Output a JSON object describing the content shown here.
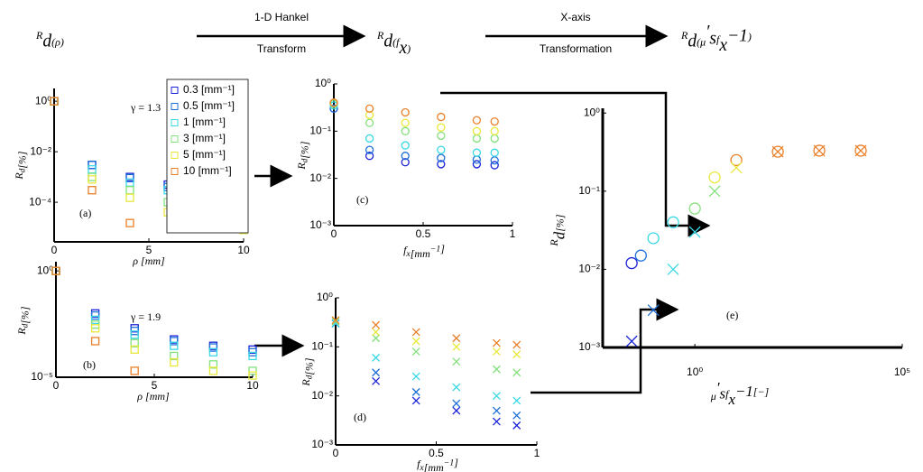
{
  "flow": {
    "stages": [
      [
        "R",
        {
          "sub": "d"
        },
        "(ρ)"
      ],
      [
        "R",
        {
          "sub": "d"
        },
        "(f",
        {
          "sub": "x"
        },
        ")"
      ],
      [
        "R",
        {
          "sub": "d"
        },
        "(μ",
        {
          "sup": "′"
        },
        {
          "sub": "s"
        },
        "f",
        {
          "sub": "x"
        },
        {
          "sup": "−1"
        },
        ")"
      ]
    ],
    "steps": [
      [
        "1-D Hankel",
        "Transform"
      ],
      [
        "X-axis",
        "Transformation"
      ]
    ]
  },
  "chart_data": [
    {
      "type": "scatter",
      "marker": "s",
      "xlabel": [
        "ρ [mm]"
      ],
      "ylabel": [
        "R",
        {
          "sub": "d"
        },
        "[%]"
      ],
      "annotations": [
        "γ = 1.3",
        "(a)"
      ],
      "legend": "upper right",
      "x": [
        0,
        2,
        4,
        6,
        8,
        10
      ],
      "xlim": [
        0,
        10
      ],
      "xticks": [
        0,
        5,
        10
      ],
      "ylog": true,
      "ylim": [
        2.7e-06,
        3.2
      ],
      "yticks": [
        {
          "value": 1,
          "label": "10⁰"
        },
        {
          "value": 0.01,
          "label": "10⁻²"
        },
        {
          "value": 0.0001,
          "label": "10⁻⁴"
        }
      ],
      "series": [
        {
          "name": "0.3 [mm⁻¹]",
          "color": "#1a22d6",
          "values": [
            1,
            0.003,
            0.001,
            0.0005,
            0.0003,
            0.0002
          ]
        },
        {
          "name": "0.5 [mm⁻¹]",
          "color": "#1c6fd8",
          "values": [
            1,
            0.003,
            0.0009,
            0.0004,
            0.00025,
            0.00015
          ]
        },
        {
          "name": "1 [mm⁻¹]",
          "color": "#38d8e4",
          "values": [
            1,
            0.002,
            0.0006,
            0.0003,
            0.00015,
            0.0001
          ]
        },
        {
          "name": "3 [mm⁻¹]",
          "color": "#84e07c",
          "values": [
            1,
            0.001,
            0.0003,
            0.0001,
            5e-05,
            3e-05
          ]
        },
        {
          "name": "5 [mm⁻¹]",
          "color": "#e8e83c",
          "values": [
            1,
            0.0008,
            0.00015,
            4e-05,
            1.5e-05,
            8e-06
          ]
        },
        {
          "name": "10 [mm⁻¹]",
          "color": "#ea7f28",
          "values": [
            1,
            0.0003,
            1.5e-05,
            null,
            null,
            null
          ]
        }
      ]
    },
    {
      "type": "scatter",
      "marker": "s",
      "xlabel": [
        "ρ [mm]"
      ],
      "ylabel": [
        "R",
        {
          "sub": "d"
        },
        "[%]"
      ],
      "annotations": [
        "γ = 1.9",
        "(b)"
      ],
      "x": [
        0,
        2,
        4,
        6,
        8,
        10
      ],
      "xlim": [
        0,
        10
      ],
      "xticks": [
        0,
        5,
        10
      ],
      "ylog": true,
      "ylim": [
        1e-05,
        2.7
      ],
      "yticks": [
        {
          "value": 1,
          "label": "10⁰"
        },
        {
          "value": 1e-05,
          "label": "10⁻⁵"
        }
      ],
      "series": [
        {
          "color": "#1a22d6",
          "values": [
            1,
            0.01,
            0.002,
            0.0006,
            0.0003,
            0.0002
          ]
        },
        {
          "color": "#1c6fd8",
          "values": [
            1,
            0.008,
            0.0015,
            0.0005,
            0.00025,
            0.00015
          ]
        },
        {
          "color": "#38d8e4",
          "values": [
            1,
            0.005,
            0.001,
            0.0003,
            0.00015,
            0.0001
          ]
        },
        {
          "color": "#84e07c",
          "values": [
            1,
            0.003,
            0.0004,
            0.0001,
            4e-05,
            2e-05
          ]
        },
        {
          "color": "#e8e83c",
          "values": [
            1,
            0.002,
            0.0002,
            5e-05,
            2e-05,
            1.2e-05
          ]
        },
        {
          "color": "#ea7f28",
          "values": [
            1,
            0.0005,
            2e-05,
            null,
            null,
            null
          ]
        }
      ]
    },
    {
      "type": "scatter",
      "marker": "o",
      "xlabel": [
        "f",
        {
          "sub": "x"
        },
        "[mm",
        {
          "sup": "−1"
        },
        "]"
      ],
      "ylabel": [
        "R",
        {
          "sub": "d"
        },
        "[%]"
      ],
      "annotations": [
        "(c)"
      ],
      "x": [
        0,
        0.2,
        0.4,
        0.6,
        0.8,
        0.9
      ],
      "xlim": [
        0,
        1
      ],
      "xticks": [
        0,
        0.5,
        1
      ],
      "ylog": true,
      "ylim": [
        0.001,
        1
      ],
      "yticks": [
        {
          "value": 1,
          "label": "10⁰"
        },
        {
          "value": 0.1,
          "label": "10⁻¹"
        },
        {
          "value": 0.01,
          "label": "10⁻²"
        },
        {
          "value": 0.001,
          "label": "10⁻³"
        }
      ],
      "series": [
        {
          "color": "#1a22d6",
          "values": [
            0.3,
            0.03,
            0.022,
            0.02,
            0.02,
            0.019
          ]
        },
        {
          "color": "#1c6fd8",
          "values": [
            0.3,
            0.04,
            0.03,
            0.027,
            0.025,
            0.024
          ]
        },
        {
          "color": "#38d8e4",
          "values": [
            0.35,
            0.07,
            0.05,
            0.04,
            0.035,
            0.035
          ]
        },
        {
          "color": "#84e07c",
          "values": [
            0.38,
            0.15,
            0.1,
            0.08,
            0.07,
            0.07
          ]
        },
        {
          "color": "#e8e83c",
          "values": [
            0.4,
            0.22,
            0.15,
            0.12,
            0.1,
            0.1
          ]
        },
        {
          "color": "#ea7f28",
          "values": [
            0.4,
            0.3,
            0.25,
            0.2,
            0.17,
            0.16
          ]
        }
      ]
    },
    {
      "type": "scatter",
      "marker": "x",
      "xlabel": [
        "f",
        {
          "sub": "x"
        },
        "[mm",
        {
          "sup": "−1"
        },
        "]"
      ],
      "ylabel": [
        "R",
        {
          "sub": "d"
        },
        "[%]"
      ],
      "annotations": [
        "(d)"
      ],
      "x": [
        0,
        0.2,
        0.4,
        0.6,
        0.8,
        0.9
      ],
      "xlim": [
        0,
        1
      ],
      "xticks": [
        0,
        0.5,
        1
      ],
      "ylog": true,
      "ylim": [
        0.001,
        1
      ],
      "yticks": [
        {
          "value": 1,
          "label": "10⁰"
        },
        {
          "value": 0.1,
          "label": "10⁻¹"
        },
        {
          "value": 0.01,
          "label": "10⁻²"
        },
        {
          "value": 0.001,
          "label": "10⁻³"
        }
      ],
      "series": [
        {
          "color": "#1a22d6",
          "values": [
            0.3,
            0.02,
            0.008,
            0.005,
            0.003,
            0.0025
          ]
        },
        {
          "color": "#1c6fd8",
          "values": [
            0.3,
            0.03,
            0.012,
            0.007,
            0.005,
            0.004
          ]
        },
        {
          "color": "#38d8e4",
          "values": [
            0.3,
            0.06,
            0.025,
            0.015,
            0.01,
            0.008
          ]
        },
        {
          "color": "#84e07c",
          "values": [
            0.33,
            0.15,
            0.08,
            0.05,
            0.035,
            0.03
          ]
        },
        {
          "color": "#e8e83c",
          "values": [
            0.35,
            0.2,
            0.13,
            0.1,
            0.08,
            0.07
          ]
        },
        {
          "color": "#ea7f28",
          "values": [
            0.35,
            0.28,
            0.2,
            0.15,
            0.12,
            0.11
          ]
        }
      ]
    },
    {
      "type": "scatter",
      "xlabel": [
        "μ",
        {
          "sup": "′"
        },
        {
          "sub": "s"
        },
        "f",
        {
          "sub": "x"
        },
        {
          "sup": "−1"
        },
        "[−]"
      ],
      "ylabel": [
        "R",
        {
          "sub": "d"
        },
        "[%]"
      ],
      "annotations": [
        "(e)"
      ],
      "xlog": true,
      "xlim": [
        0.006,
        100000
      ],
      "xticks": [
        {
          "value": 1,
          "label": "10⁰"
        },
        {
          "value": 100000,
          "label": "10⁵"
        }
      ],
      "ylog": true,
      "ylim": [
        0.001,
        1.15
      ],
      "yticks": [
        {
          "value": 1,
          "label": "10⁰"
        },
        {
          "value": 0.1,
          "label": "10⁻¹"
        },
        {
          "value": 0.01,
          "label": "10⁻²"
        },
        {
          "value": 0.001,
          "label": "10⁻³"
        }
      ],
      "series": [
        {
          "marker": "o",
          "x": [
            0.03,
            0.05,
            0.1,
            0.3,
            1,
            3,
            10,
            100,
            1000,
            10000
          ],
          "values": [
            0.012,
            0.015,
            0.025,
            0.04,
            0.06,
            0.15,
            0.25,
            0.32,
            0.33,
            0.33
          ],
          "colors": [
            "#1a22d6",
            "#1c6fd8",
            "#38d8e4",
            "#38d8e4",
            "#84e07c",
            "#e8e83c",
            "#ea7f28",
            "#ea7f28",
            "#ea7f28",
            "#ea7f28"
          ]
        },
        {
          "marker": "x",
          "x": [
            0.03,
            0.1,
            0.3,
            1,
            3,
            10,
            100,
            1000,
            10000
          ],
          "values": [
            0.0012,
            0.003,
            0.01,
            0.03,
            0.1,
            0.2,
            0.32,
            0.33,
            0.33
          ],
          "colors": [
            "#1a22d6",
            "#1c6fd8",
            "#38d8e4",
            "#38d8e4",
            "#84e07c",
            "#e8e83c",
            "#ea7f28",
            "#ea7f28",
            "#ea7f28"
          ]
        }
      ]
    }
  ]
}
